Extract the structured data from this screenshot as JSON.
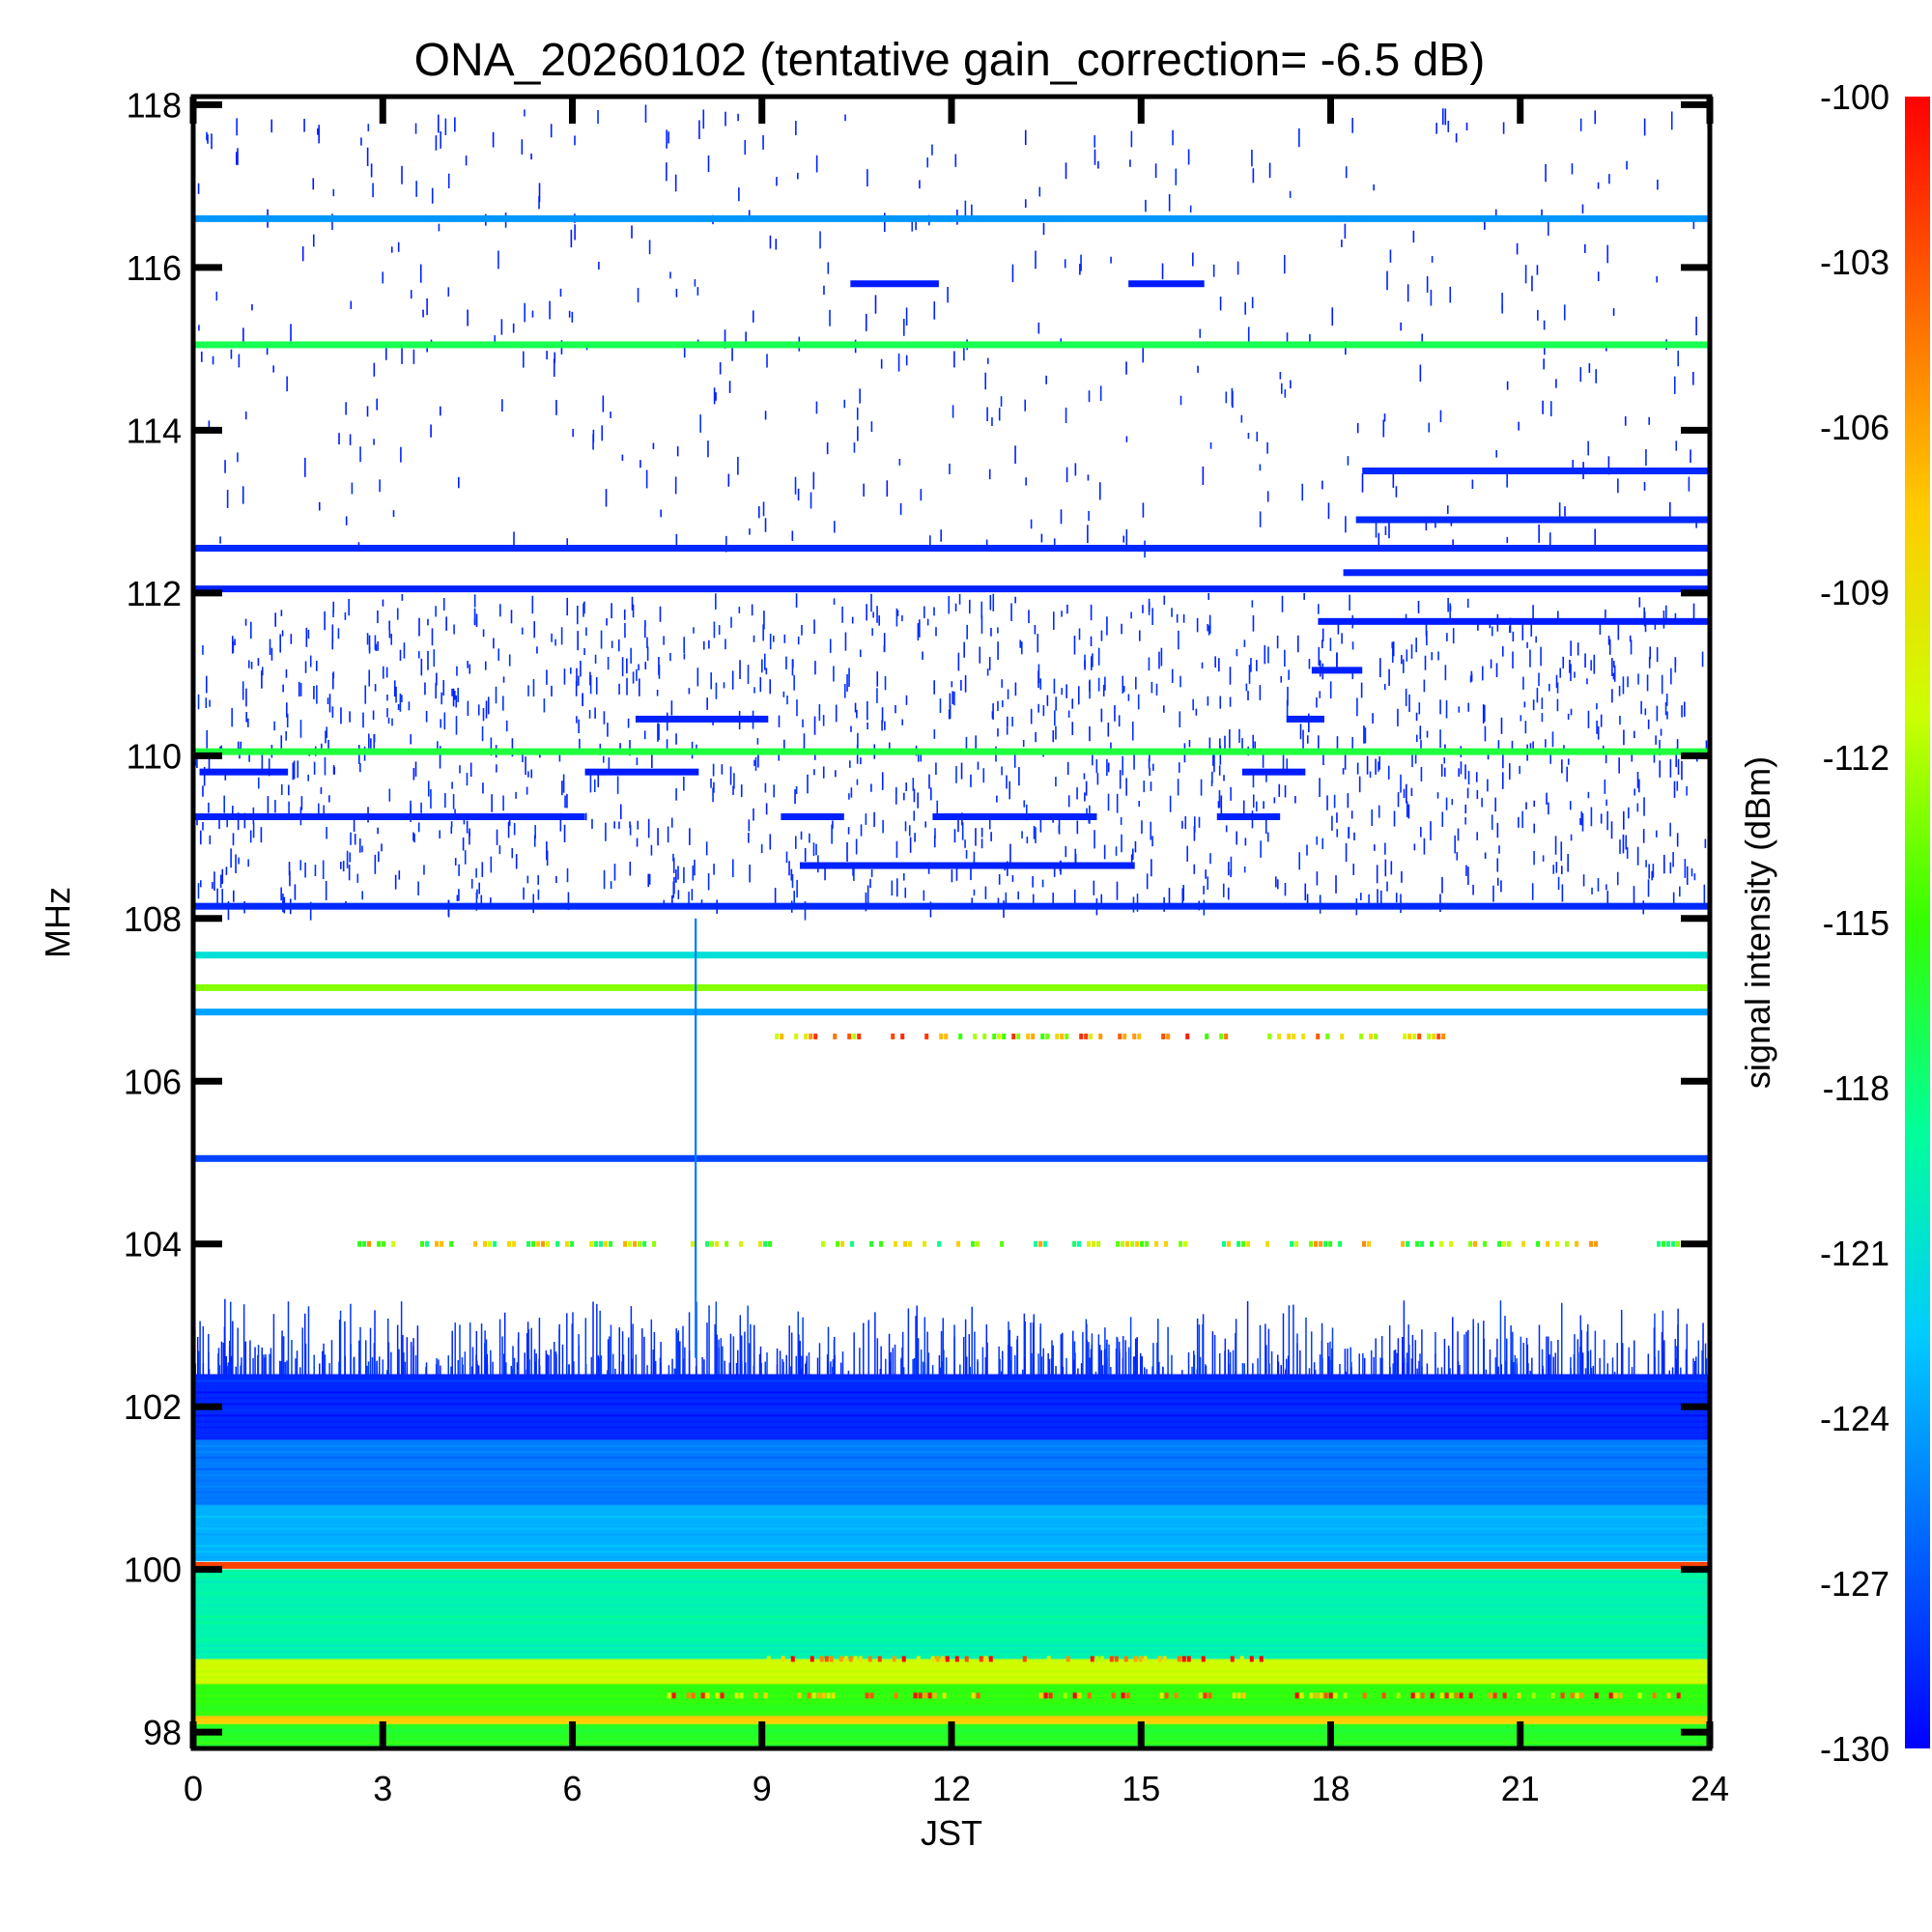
{
  "chart_data": {
    "type": "heatmap",
    "title": "ONA_20260102 (tentative gain_correction= -6.5 dB)",
    "xlabel": "JST",
    "ylabel": "MHz",
    "colorbar_label": "signal intensity (dBm)",
    "xlim": [
      0,
      24
    ],
    "ylim": [
      97.8,
      118.1
    ],
    "x_ticks": [
      0,
      3,
      6,
      9,
      12,
      15,
      18,
      21,
      24
    ],
    "x_tick_labels": [
      "0",
      "3",
      "6",
      "9",
      "12",
      "15",
      "18",
      "21",
      "24"
    ],
    "y_ticks": [
      98,
      100,
      102,
      104,
      106,
      108,
      110,
      112,
      114,
      116,
      118
    ],
    "y_tick_labels": [
      "98",
      "100",
      "102",
      "104",
      "106",
      "108",
      "110",
      "112",
      "114",
      "116",
      "118"
    ],
    "colorbar_range": [
      -130,
      -100
    ],
    "colorbar_ticks": [
      -100,
      -103,
      -106,
      -109,
      -112,
      -115,
      -118,
      -121,
      -124,
      -127,
      -130
    ],
    "colorbar_tick_labels": [
      "-100",
      "-103",
      "-106",
      "-109",
      "-112",
      "-115",
      "-118",
      "-121",
      "-124",
      "-127",
      "-130"
    ],
    "colormap": [
      "#0000ff",
      "#0066ff",
      "#00ccff",
      "#00ff99",
      "#33ff00",
      "#ccff00",
      "#ffcc00",
      "#ff6600",
      "#ff0000"
    ],
    "steady_lines": [
      {
        "freq": 116.6,
        "dbm": -124.5
      },
      {
        "freq": 115.05,
        "dbm": -117.0
      },
      {
        "freq": 112.55,
        "dbm": -128.5
      },
      {
        "freq": 112.05,
        "dbm": -128.8
      },
      {
        "freq": 110.05,
        "dbm": -116.5
      },
      {
        "freq": 108.15,
        "dbm": -128.5
      },
      {
        "freq": 107.55,
        "dbm": -121.0
      },
      {
        "freq": 107.15,
        "dbm": -113.0
      },
      {
        "freq": 106.85,
        "dbm": -124.0
      },
      {
        "freq": 105.05,
        "dbm": -127.5
      },
      {
        "freq": 100.05,
        "dbm": -102.5
      }
    ],
    "partial_lines": [
      {
        "freq": 113.5,
        "start": 18.5,
        "end": 24,
        "dbm": -128.5
      },
      {
        "freq": 112.9,
        "start": 18.4,
        "end": 24,
        "dbm": -128.5
      },
      {
        "freq": 112.25,
        "start": 18.2,
        "end": 24,
        "dbm": -128.8
      },
      {
        "freq": 111.65,
        "start": 17.8,
        "end": 24,
        "dbm": -129.0
      },
      {
        "freq": 111.05,
        "start": 17.7,
        "end": 18.5,
        "dbm": -128.8
      },
      {
        "freq": 110.45,
        "start": 7.0,
        "end": 9.1,
        "dbm": -128.8
      },
      {
        "freq": 110.45,
        "start": 17.3,
        "end": 17.9,
        "dbm": -128.8
      },
      {
        "freq": 109.8,
        "start": 0.1,
        "end": 1.5,
        "dbm": -129.0
      },
      {
        "freq": 109.8,
        "start": 6.2,
        "end": 8.0,
        "dbm": -129.0
      },
      {
        "freq": 109.8,
        "start": 16.6,
        "end": 17.6,
        "dbm": -129.0
      },
      {
        "freq": 109.25,
        "start": 0.0,
        "end": 6.2,
        "dbm": -128.8
      },
      {
        "freq": 109.25,
        "start": 9.3,
        "end": 10.3,
        "dbm": -128.8
      },
      {
        "freq": 109.25,
        "start": 11.7,
        "end": 14.3,
        "dbm": -128.8
      },
      {
        "freq": 109.25,
        "start": 16.2,
        "end": 17.2,
        "dbm": -128.8
      },
      {
        "freq": 108.65,
        "start": 9.6,
        "end": 14.9,
        "dbm": -128.8
      },
      {
        "freq": 115.8,
        "start": 10.4,
        "end": 11.8,
        "dbm": -129.0
      },
      {
        "freq": 115.8,
        "start": 14.8,
        "end": 16.0,
        "dbm": -129.0
      },
      {
        "freq": 106.55,
        "start": 8.9,
        "end": 19.8,
        "dbm": -108.0
      },
      {
        "freq": 104.0,
        "start": 2.6,
        "end": 23.5,
        "dbm": -112.0
      },
      {
        "freq": 98.9,
        "start": 9.0,
        "end": 17.0,
        "dbm": -105.0
      },
      {
        "freq": 98.45,
        "start": 7.5,
        "end": 23.5,
        "dbm": -105.5
      }
    ],
    "noise_floor_band": [
      {
        "freq_from": 97.8,
        "freq_to": 98.1,
        "dbm": -116.0
      },
      {
        "freq_from": 98.1,
        "freq_to": 98.2,
        "dbm": -107.5
      },
      {
        "freq_from": 98.2,
        "freq_to": 98.6,
        "dbm": -115.5
      },
      {
        "freq_from": 98.6,
        "freq_to": 98.9,
        "dbm": -111.0
      },
      {
        "freq_from": 98.9,
        "freq_to": 100.0,
        "dbm": -119.5
      },
      {
        "freq_from": 100.1,
        "freq_to": 100.8,
        "dbm": -123.5
      },
      {
        "freq_from": 100.8,
        "freq_to": 101.6,
        "dbm": -125.5
      },
      {
        "freq_from": 101.6,
        "freq_to": 102.4,
        "dbm": -128.5
      }
    ],
    "scattered_regions": [
      {
        "freq_from": 108.2,
        "freq_to": 112.0,
        "start": 0,
        "end": 24,
        "density": "dense",
        "dbm": -129.0
      },
      {
        "freq_from": 112.6,
        "freq_to": 118.0,
        "start": 0,
        "end": 24,
        "density": "sparse",
        "dbm": -129.2
      },
      {
        "freq_from": 102.4,
        "freq_to": 103.6,
        "start": 0,
        "end": 24,
        "density": "spiky",
        "dbm": -129.0
      }
    ],
    "vertical_feature": {
      "time": 7.95,
      "freq_from": 102.6,
      "freq_to": 108.0,
      "dbm": -125.5
    }
  }
}
